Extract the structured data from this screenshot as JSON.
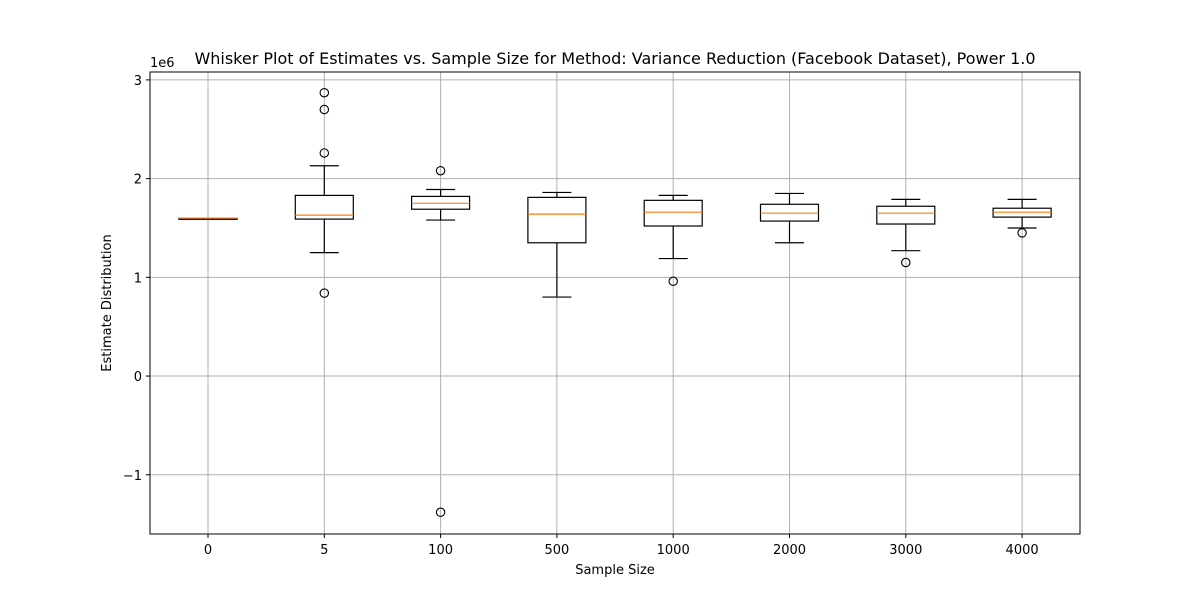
{
  "chart_data": {
    "type": "box",
    "title": "Whisker Plot of Estimates vs. Sample Size for Method: Variance Reduction (Facebook Dataset), Power 1.0",
    "xlabel": "Sample Size",
    "ylabel": "Estimate Distribution",
    "y_scale_label": "1e6",
    "ylim": [
      -1.6,
      3.08
    ],
    "y_ticks": [
      -1,
      0,
      1,
      2,
      3
    ],
    "y_tick_labels": [
      "−1",
      "0",
      "1",
      "2",
      "3"
    ],
    "grid": true,
    "categories": [
      "0",
      "5",
      "100",
      "500",
      "1000",
      "2000",
      "3000",
      "4000"
    ],
    "boxes": [
      {
        "label": "0",
        "whisker_low": 1.6,
        "q1": 1.6,
        "median": 1.6,
        "q3": 1.6,
        "whisker_high": 1.6,
        "outliers": []
      },
      {
        "label": "5",
        "whisker_low": 1.25,
        "q1": 1.59,
        "median": 1.63,
        "q3": 1.83,
        "whisker_high": 2.13,
        "outliers": [
          0.84,
          2.26,
          2.7,
          2.87
        ]
      },
      {
        "label": "100",
        "whisker_low": 1.58,
        "q1": 1.69,
        "median": 1.75,
        "q3": 1.82,
        "whisker_high": 1.89,
        "outliers": [
          2.08,
          -1.38
        ]
      },
      {
        "label": "500",
        "whisker_low": 0.8,
        "q1": 1.35,
        "median": 1.64,
        "q3": 1.81,
        "whisker_high": 1.86,
        "outliers": []
      },
      {
        "label": "1000",
        "whisker_low": 1.19,
        "q1": 1.52,
        "median": 1.66,
        "q3": 1.78,
        "whisker_high": 1.83,
        "outliers": [
          0.96
        ]
      },
      {
        "label": "2000",
        "whisker_low": 1.35,
        "q1": 1.57,
        "median": 1.65,
        "q3": 1.74,
        "whisker_high": 1.85,
        "outliers": []
      },
      {
        "label": "3000",
        "whisker_low": 1.27,
        "q1": 1.54,
        "median": 1.65,
        "q3": 1.72,
        "whisker_high": 1.79,
        "outliers": [
          1.15
        ]
      },
      {
        "label": "4000",
        "whisker_low": 1.5,
        "q1": 1.61,
        "median": 1.66,
        "q3": 1.7,
        "whisker_high": 1.79,
        "outliers": [
          1.45
        ]
      }
    ],
    "colors": {
      "box": "#000000",
      "median": "#ff7f0e",
      "grid": "#b0b0b0"
    }
  }
}
